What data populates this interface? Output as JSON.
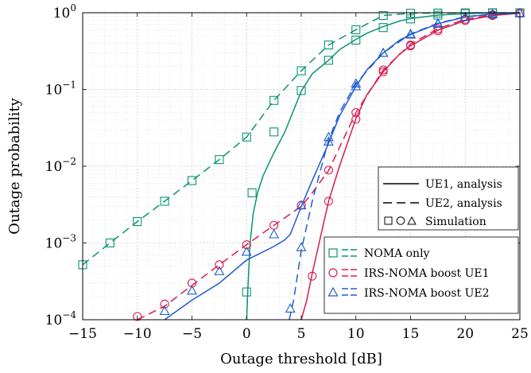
{
  "chart_data": {
    "type": "line",
    "xlabel": "Outage threshold [dB]",
    "ylabel": "Outage probability",
    "xlim": [
      -15,
      25
    ],
    "ylim": [
      0.0001,
      1
    ],
    "yscale": "log",
    "grid": true,
    "xticks": [
      "−15",
      "−10",
      "−5",
      "0",
      "5",
      "10",
      "15",
      "20",
      "25"
    ],
    "xtick_values": [
      -15,
      -10,
      -5,
      0,
      5,
      10,
      15,
      20,
      25
    ],
    "yticks": [
      {
        "base": "10",
        "exp": "−4",
        "value": 0.0001
      },
      {
        "base": "10",
        "exp": "−3",
        "value": 0.001
      },
      {
        "base": "10",
        "exp": "−2",
        "value": 0.01
      },
      {
        "base": "10",
        "exp": "−1",
        "value": 0.1
      },
      {
        "base": "10",
        "exp": "0",
        "value": 1
      }
    ],
    "colors": {
      "noma": "#0a9472",
      "irs_ue1": "#d81b4e",
      "irs_ue2": "#1f5bcf"
    },
    "legend_style": {
      "position": "bottom-right",
      "entries": [
        "UE1, analysis",
        "UE2, analysis",
        "Simulation"
      ]
    },
    "legend_schemes": {
      "position": "bottom-right",
      "entries": [
        "NOMA only",
        "IRS-NOMA boost UE1",
        "IRS-NOMA boost UE2"
      ]
    },
    "series": [
      {
        "scheme": "NOMA only",
        "user": "UE1",
        "color": "noma",
        "dash": "solid",
        "marker": "square",
        "x": [
          0.0,
          0.1,
          0.3,
          0.6,
          1.0,
          1.5,
          2.5,
          3.5,
          5.0,
          6.0,
          7.5,
          8.5,
          10.0,
          11.0,
          12.5,
          14.0,
          15.0,
          17.5,
          20.0,
          22.5,
          25.0
        ],
        "y": [
          0.0001,
          0.00022,
          0.00095,
          0.0024,
          0.0045,
          0.0075,
          0.015,
          0.028,
          0.095,
          0.16,
          0.24,
          0.33,
          0.45,
          0.54,
          0.66,
          0.78,
          0.84,
          0.93,
          0.975,
          0.99,
          0.997
        ],
        "markers_x": [
          0.0,
          0.5,
          2.5,
          5.0,
          7.5,
          10.0,
          12.5,
          15.0,
          17.5,
          20.0,
          22.5,
          25.0
        ],
        "markers_y": [
          0.00023,
          0.0045,
          0.028,
          0.097,
          0.24,
          0.44,
          0.64,
          0.83,
          0.93,
          0.975,
          0.99,
          0.997
        ]
      },
      {
        "scheme": "NOMA only",
        "user": "UE2",
        "color": "noma",
        "dash": "dashed",
        "marker": "square",
        "x": [
          -15.0,
          -12.5,
          -10.0,
          -7.5,
          -5.0,
          -2.5,
          0.0,
          2.5,
          5.0,
          7.5,
          10.0,
          12.5,
          15.0,
          17.5,
          20.0,
          22.5,
          25.0
        ],
        "y": [
          0.00052,
          0.001,
          0.0019,
          0.0035,
          0.0065,
          0.0122,
          0.024,
          0.072,
          0.175,
          0.38,
          0.6,
          0.92,
          0.985,
          0.99,
          0.995,
          0.998,
          0.999
        ],
        "markers_x": [
          -15.0,
          -12.5,
          -10.0,
          -7.5,
          -5.0,
          -2.5,
          0.0,
          2.5,
          5.0,
          7.5,
          10.0,
          12.5,
          15.0,
          17.5,
          20.0,
          22.5,
          25.0
        ],
        "markers_y": [
          0.00052,
          0.001,
          0.0019,
          0.0035,
          0.0065,
          0.0122,
          0.024,
          0.072,
          0.175,
          0.38,
          0.6,
          0.92,
          0.985,
          0.99,
          0.995,
          0.998,
          0.999
        ]
      },
      {
        "scheme": "IRS-NOMA boost UE1",
        "user": "UE1",
        "color": "irs_ue1",
        "dash": "solid",
        "marker": "circle",
        "x": [
          5.0,
          5.5,
          6.0,
          7.0,
          7.5,
          8.5,
          10.0,
          11.0,
          12.5,
          14.0,
          15.0,
          17.5,
          20.0,
          22.5,
          25.0
        ],
        "y": [
          0.0001,
          0.00018,
          0.0004,
          0.0017,
          0.0035,
          0.01,
          0.042,
          0.085,
          0.17,
          0.29,
          0.37,
          0.59,
          0.79,
          0.92,
          0.985
        ],
        "markers_x": [
          6.0,
          7.5,
          10.0,
          12.5,
          15.0,
          17.5,
          20.0,
          22.5,
          25.0
        ],
        "markers_y": [
          0.00037,
          0.0035,
          0.041,
          0.17,
          0.37,
          0.58,
          0.79,
          0.92,
          0.985
        ]
      },
      {
        "scheme": "IRS-NOMA boost UE1",
        "user": "UE2",
        "color": "irs_ue1",
        "dash": "dashed",
        "marker": "circle",
        "x": [
          -10.0,
          -7.5,
          -5.0,
          -2.5,
          0.0,
          2.5,
          5.0,
          6.0,
          7.5,
          10.0,
          12.5,
          15.0,
          17.5,
          20.0,
          22.5,
          25.0
        ],
        "y": [
          0.0001,
          0.00015,
          0.00028,
          0.00052,
          0.00095,
          0.0017,
          0.003,
          0.0045,
          0.0088,
          0.05,
          0.18,
          0.39,
          0.62,
          0.82,
          0.94,
          0.985
        ],
        "markers_x": [
          -10.0,
          -7.5,
          -5.0,
          -2.5,
          0.0,
          2.5,
          5.0,
          7.5,
          10.0,
          12.5,
          15.0,
          17.5,
          20.0,
          22.5,
          25.0
        ],
        "markers_y": [
          0.00011,
          0.00016,
          0.0003,
          0.00052,
          0.00095,
          0.0017,
          0.0031,
          0.0089,
          0.05,
          0.18,
          0.38,
          0.61,
          0.82,
          0.94,
          0.985
        ]
      },
      {
        "scheme": "IRS-NOMA boost UE2",
        "user": "UE1",
        "color": "irs_ue2",
        "dash": "solid",
        "marker": "triangle",
        "x": [
          -7.5,
          -5.0,
          -2.5,
          0.0,
          2.5,
          3.5,
          4.0,
          5.0,
          6.0,
          7.5,
          8.5,
          10.0,
          11.0,
          12.5,
          14.0,
          15.0,
          17.5,
          20.0,
          22.5,
          25.0
        ],
        "y": [
          0.0001,
          0.00018,
          0.0003,
          0.0006,
          0.0009,
          0.0011,
          0.0013,
          0.003,
          0.0065,
          0.02,
          0.045,
          0.11,
          0.18,
          0.3,
          0.44,
          0.52,
          0.72,
          0.88,
          0.96,
          0.99
        ],
        "markers_x": [
          -7.5,
          -5.0,
          -2.5,
          0.0,
          2.5,
          5.0,
          7.5,
          10.0,
          12.5,
          15.0,
          17.5,
          20.0,
          22.5,
          25.0
        ],
        "markers_y": [
          0.00013,
          0.00024,
          0.00043,
          0.00077,
          0.0013,
          0.0031,
          0.021,
          0.11,
          0.3,
          0.52,
          0.72,
          0.88,
          0.96,
          0.99
        ]
      },
      {
        "scheme": "IRS-NOMA boost UE2",
        "user": "UE2",
        "color": "irs_ue2",
        "dash": "dashed",
        "marker": "triangle",
        "x": [
          3.9,
          4.3,
          5.0,
          6.0,
          7.5,
          8.5,
          10.0,
          12.5,
          15.0,
          17.5,
          20.0,
          22.5,
          25.0
        ],
        "y": [
          0.0001,
          0.00018,
          0.0008,
          0.0035,
          0.022,
          0.05,
          0.12,
          0.3,
          0.53,
          0.73,
          0.89,
          0.96,
          0.99
        ],
        "markers_x": [
          4.0,
          5.0,
          7.5,
          10.0,
          12.5,
          15.0,
          17.5,
          20.0,
          22.5,
          25.0
        ],
        "markers_y": [
          0.00014,
          0.00088,
          0.024,
          0.12,
          0.3,
          0.53,
          0.73,
          0.89,
          0.96,
          0.99
        ]
      }
    ]
  }
}
